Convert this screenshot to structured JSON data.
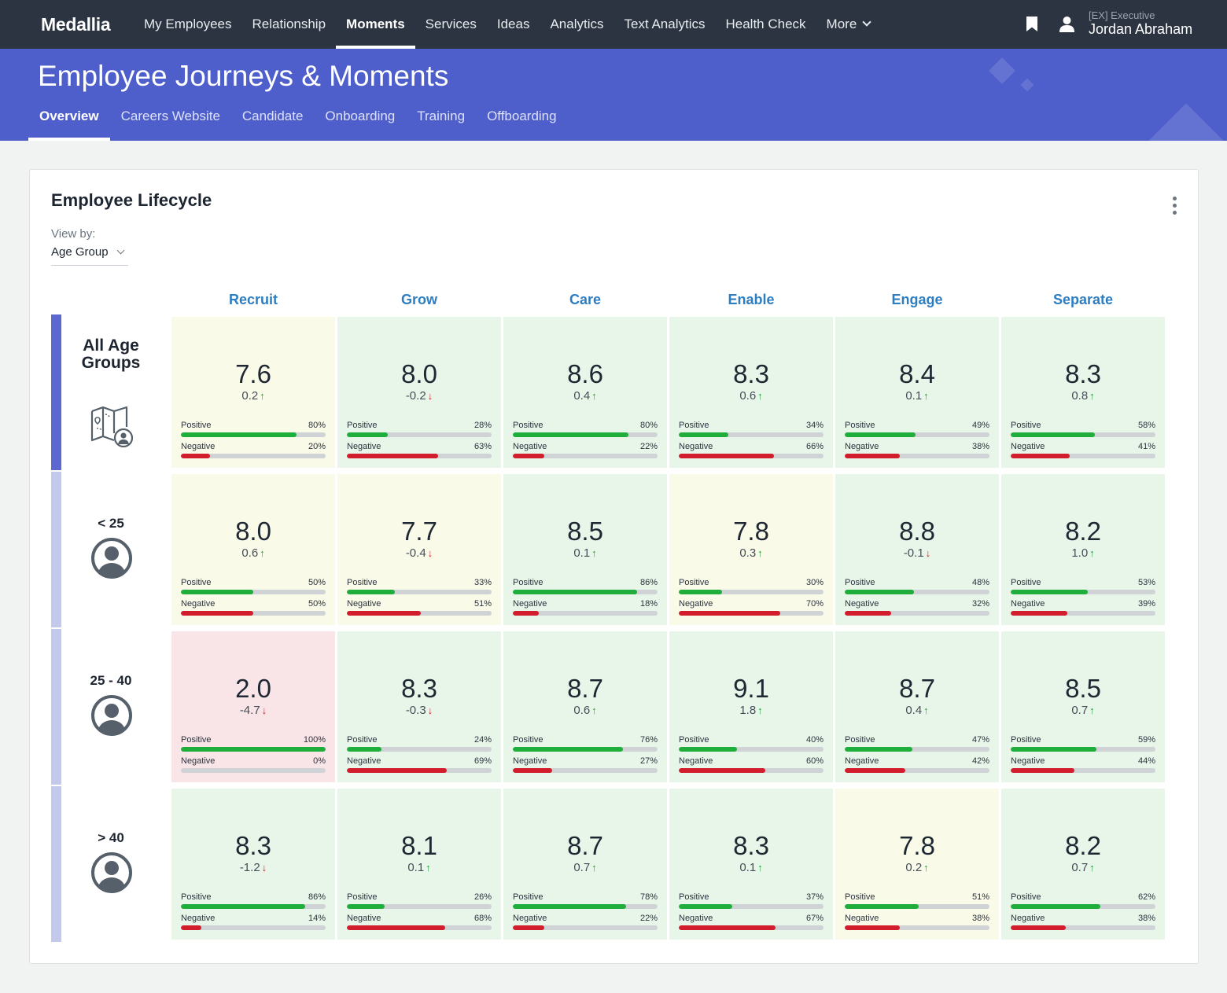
{
  "nav": {
    "brand": "Medallia",
    "items": [
      "My Employees",
      "Relationship",
      "Moments",
      "Services",
      "Ideas",
      "Analytics",
      "Text Analytics",
      "Health Check",
      "More"
    ],
    "active_index": 2,
    "user_role": "[EX] Executive",
    "user_name": "Jordan Abraham"
  },
  "header": {
    "title": "Employee Journeys & Moments",
    "tabs": [
      "Overview",
      "Careers Website",
      "Candidate",
      "Onboarding",
      "Training",
      "Offboarding"
    ],
    "active_tab": 0
  },
  "card": {
    "title": "Employee Lifecycle",
    "view_by_label": "View by:",
    "view_by_value": "Age Group",
    "columns": [
      "Recruit",
      "Grow",
      "Care",
      "Enable",
      "Engage",
      "Separate"
    ],
    "positive_label": "Positive",
    "negative_label": "Negative",
    "rows": [
      {
        "label": "All Age Groups",
        "icon": "map-person-icon",
        "bar_color": "#5b68cf",
        "cells": [
          {
            "score": "7.6",
            "delta": "0.2",
            "dir": "up",
            "pos": "80%",
            "neg": "20%",
            "color": "yellow"
          },
          {
            "score": "8.0",
            "delta": "-0.2",
            "dir": "down",
            "pos": "28%",
            "neg": "63%",
            "color": "green"
          },
          {
            "score": "8.6",
            "delta": "0.4",
            "dir": "up",
            "pos": "80%",
            "neg": "22%",
            "color": "green"
          },
          {
            "score": "8.3",
            "delta": "0.6",
            "dir": "up",
            "pos": "34%",
            "neg": "66%",
            "color": "green"
          },
          {
            "score": "8.4",
            "delta": "0.1",
            "dir": "up",
            "pos": "49%",
            "neg": "38%",
            "color": "green"
          },
          {
            "score": "8.3",
            "delta": "0.8",
            "dir": "up",
            "pos": "58%",
            "neg": "41%",
            "color": "green"
          }
        ]
      },
      {
        "label": "< 25",
        "icon": "user-avatar-icon",
        "bar_color": "#c3c9ea",
        "cells": [
          {
            "score": "8.0",
            "delta": "0.6",
            "dir": "up",
            "pos": "50%",
            "neg": "50%",
            "color": "yellow"
          },
          {
            "score": "7.7",
            "delta": "-0.4",
            "dir": "down",
            "pos": "33%",
            "neg": "51%",
            "color": "yellow"
          },
          {
            "score": "8.5",
            "delta": "0.1",
            "dir": "up",
            "pos": "86%",
            "neg": "18%",
            "color": "green"
          },
          {
            "score": "7.8",
            "delta": "0.3",
            "dir": "up",
            "pos": "30%",
            "neg": "70%",
            "color": "yellow"
          },
          {
            "score": "8.8",
            "delta": "-0.1",
            "dir": "down",
            "pos": "48%",
            "neg": "32%",
            "color": "green"
          },
          {
            "score": "8.2",
            "delta": "1.0",
            "dir": "up",
            "pos": "53%",
            "neg": "39%",
            "color": "green"
          }
        ]
      },
      {
        "label": "25 - 40",
        "icon": "user-avatar-icon",
        "bar_color": "#c3c9ea",
        "cells": [
          {
            "score": "2.0",
            "delta": "-4.7",
            "dir": "down",
            "pos": "100%",
            "neg": "0%",
            "color": "red"
          },
          {
            "score": "8.3",
            "delta": "-0.3",
            "dir": "down",
            "pos": "24%",
            "neg": "69%",
            "color": "green"
          },
          {
            "score": "8.7",
            "delta": "0.6",
            "dir": "up",
            "pos": "76%",
            "neg": "27%",
            "color": "green"
          },
          {
            "score": "9.1",
            "delta": "1.8",
            "dir": "up",
            "pos": "40%",
            "neg": "60%",
            "color": "green"
          },
          {
            "score": "8.7",
            "delta": "0.4",
            "dir": "up",
            "pos": "47%",
            "neg": "42%",
            "color": "green"
          },
          {
            "score": "8.5",
            "delta": "0.7",
            "dir": "up",
            "pos": "59%",
            "neg": "44%",
            "color": "green"
          }
        ]
      },
      {
        "label": "> 40",
        "icon": "user-avatar-icon",
        "bar_color": "#c3c9ea",
        "cells": [
          {
            "score": "8.3",
            "delta": "-1.2",
            "dir": "down",
            "pos": "86%",
            "neg": "14%",
            "color": "green"
          },
          {
            "score": "8.1",
            "delta": "0.1",
            "dir": "up",
            "pos": "26%",
            "neg": "68%",
            "color": "green"
          },
          {
            "score": "8.7",
            "delta": "0.7",
            "dir": "up",
            "pos": "78%",
            "neg": "22%",
            "color": "green"
          },
          {
            "score": "8.3",
            "delta": "0.1",
            "dir": "up",
            "pos": "37%",
            "neg": "67%",
            "color": "green"
          },
          {
            "score": "7.8",
            "delta": "0.2",
            "dir": "up",
            "pos": "51%",
            "neg": "38%",
            "color": "yellow"
          },
          {
            "score": "8.2",
            "delta": "0.7",
            "dir": "up",
            "pos": "62%",
            "neg": "38%",
            "color": "green"
          }
        ]
      }
    ]
  }
}
